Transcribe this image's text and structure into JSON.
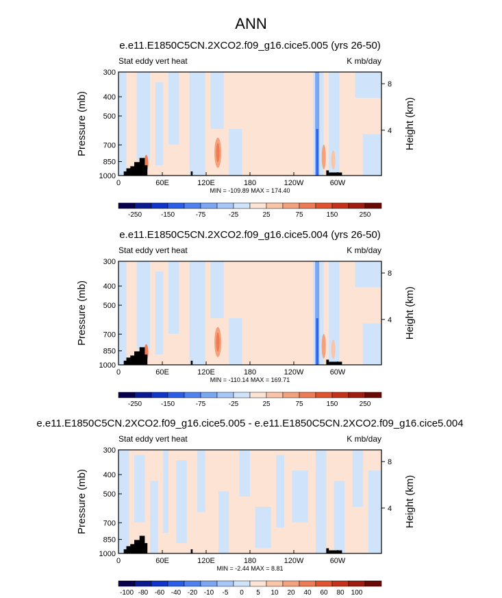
{
  "figure": {
    "main_title": "ANN",
    "colors": {
      "frame": "#000000",
      "background": "#ffffff",
      "terrain": "#000000"
    }
  },
  "chart_data": [
    {
      "type": "heatmap",
      "title": "e.e11.E1850C5CN.2XCO2.f09_g16.cice5.005 (yrs 26-50)",
      "left_label": "Stat eddy vert heat",
      "right_label": "K mb/day",
      "ylabel": "Pressure (mb)",
      "ylabel_right": "Height (km)",
      "y_ticks": [
        "300",
        "400",
        "500",
        "700",
        "850",
        "1000"
      ],
      "y_tick_values": [
        300,
        400,
        500,
        700,
        850,
        1000
      ],
      "y_right_ticks": [
        "8",
        "4"
      ],
      "y_right_values": [
        8,
        4
      ],
      "x_ticks": [
        "0",
        "60E",
        "120E",
        "180",
        "120W",
        "60W"
      ],
      "x_tick_values": [
        0,
        60,
        120,
        180,
        240,
        300
      ],
      "xlim": [
        0,
        360
      ],
      "stats": "MIN = -109.89  MAX = 174.40",
      "stats_min": -109.89,
      "stats_max": 174.4,
      "colorbar_labels": [
        "-250",
        "-150",
        "-75",
        "-25",
        "25",
        "75",
        "150",
        "250"
      ],
      "colorbar_colors": [
        "#06004d",
        "#0a1a91",
        "#1036c8",
        "#2a5ee6",
        "#4f82ee",
        "#7aa6f2",
        "#a6c7f7",
        "#cfe3fa",
        "#fde3d3",
        "#f9c4a8",
        "#f4a27e",
        "#ed7b55",
        "#e0532f",
        "#c4321b",
        "#9e1c10",
        "#6b0a05"
      ]
    },
    {
      "type": "heatmap",
      "title": "e.e11.E1850C5CN.2XCO2.f09_g16.cice5.004 (yrs 26-50)",
      "left_label": "Stat eddy vert heat",
      "right_label": "K mb/day",
      "ylabel": "Pressure (mb)",
      "ylabel_right": "Height (km)",
      "y_ticks": [
        "300",
        "400",
        "500",
        "700",
        "850",
        "1000"
      ],
      "y_tick_values": [
        300,
        400,
        500,
        700,
        850,
        1000
      ],
      "y_right_ticks": [
        "8",
        "4"
      ],
      "y_right_values": [
        8,
        4
      ],
      "x_ticks": [
        "0",
        "60E",
        "120E",
        "180",
        "120W",
        "60W"
      ],
      "x_tick_values": [
        0,
        60,
        120,
        180,
        240,
        300
      ],
      "xlim": [
        0,
        360
      ],
      "stats": "MIN = -110.14  MAX = 169.71",
      "stats_min": -110.14,
      "stats_max": 169.71,
      "colorbar_labels": [
        "-250",
        "-150",
        "-75",
        "-25",
        "25",
        "75",
        "150",
        "250"
      ],
      "colorbar_colors": [
        "#06004d",
        "#0a1a91",
        "#1036c8",
        "#2a5ee6",
        "#4f82ee",
        "#7aa6f2",
        "#a6c7f7",
        "#cfe3fa",
        "#fde3d3",
        "#f9c4a8",
        "#f4a27e",
        "#ed7b55",
        "#e0532f",
        "#c4321b",
        "#9e1c10",
        "#6b0a05"
      ]
    },
    {
      "type": "heatmap",
      "title": "e.e11.E1850C5CN.2XCO2.f09_g16.cice5.005 - e.e11.E1850C5CN.2XCO2.f09_g16.cice5.004",
      "left_label": "Stat eddy vert heat",
      "right_label": "K mb/day",
      "ylabel": "Pressure (mb)",
      "ylabel_right": "Height (km)",
      "y_ticks": [
        "300",
        "400",
        "500",
        "700",
        "850",
        "1000"
      ],
      "y_tick_values": [
        300,
        400,
        500,
        700,
        850,
        1000
      ],
      "y_right_ticks": [
        "8",
        "4"
      ],
      "y_right_values": [
        8,
        4
      ],
      "x_ticks": [
        "0",
        "60E",
        "120E",
        "180",
        "120W",
        "60W"
      ],
      "x_tick_values": [
        0,
        60,
        120,
        180,
        240,
        300
      ],
      "xlim": [
        0,
        360
      ],
      "stats": "MIN =  -2.44  MAX =   8.81",
      "stats_min": -2.44,
      "stats_max": 8.81,
      "colorbar_labels": [
        "-100",
        "-80",
        "-60",
        "-40",
        "-20",
        "-10",
        "-5",
        "0",
        "5",
        "10",
        "20",
        "40",
        "60",
        "80",
        "100"
      ],
      "colorbar_colors": [
        "#06004d",
        "#0a1a91",
        "#1036c8",
        "#2a5ee6",
        "#4f82ee",
        "#7aa6f2",
        "#a6c7f7",
        "#cfe3fa",
        "#fde3d3",
        "#f9c4a8",
        "#f4a27e",
        "#ed7b55",
        "#e0532f",
        "#c4321b",
        "#9e1c10",
        "#6b0a05"
      ]
    }
  ]
}
